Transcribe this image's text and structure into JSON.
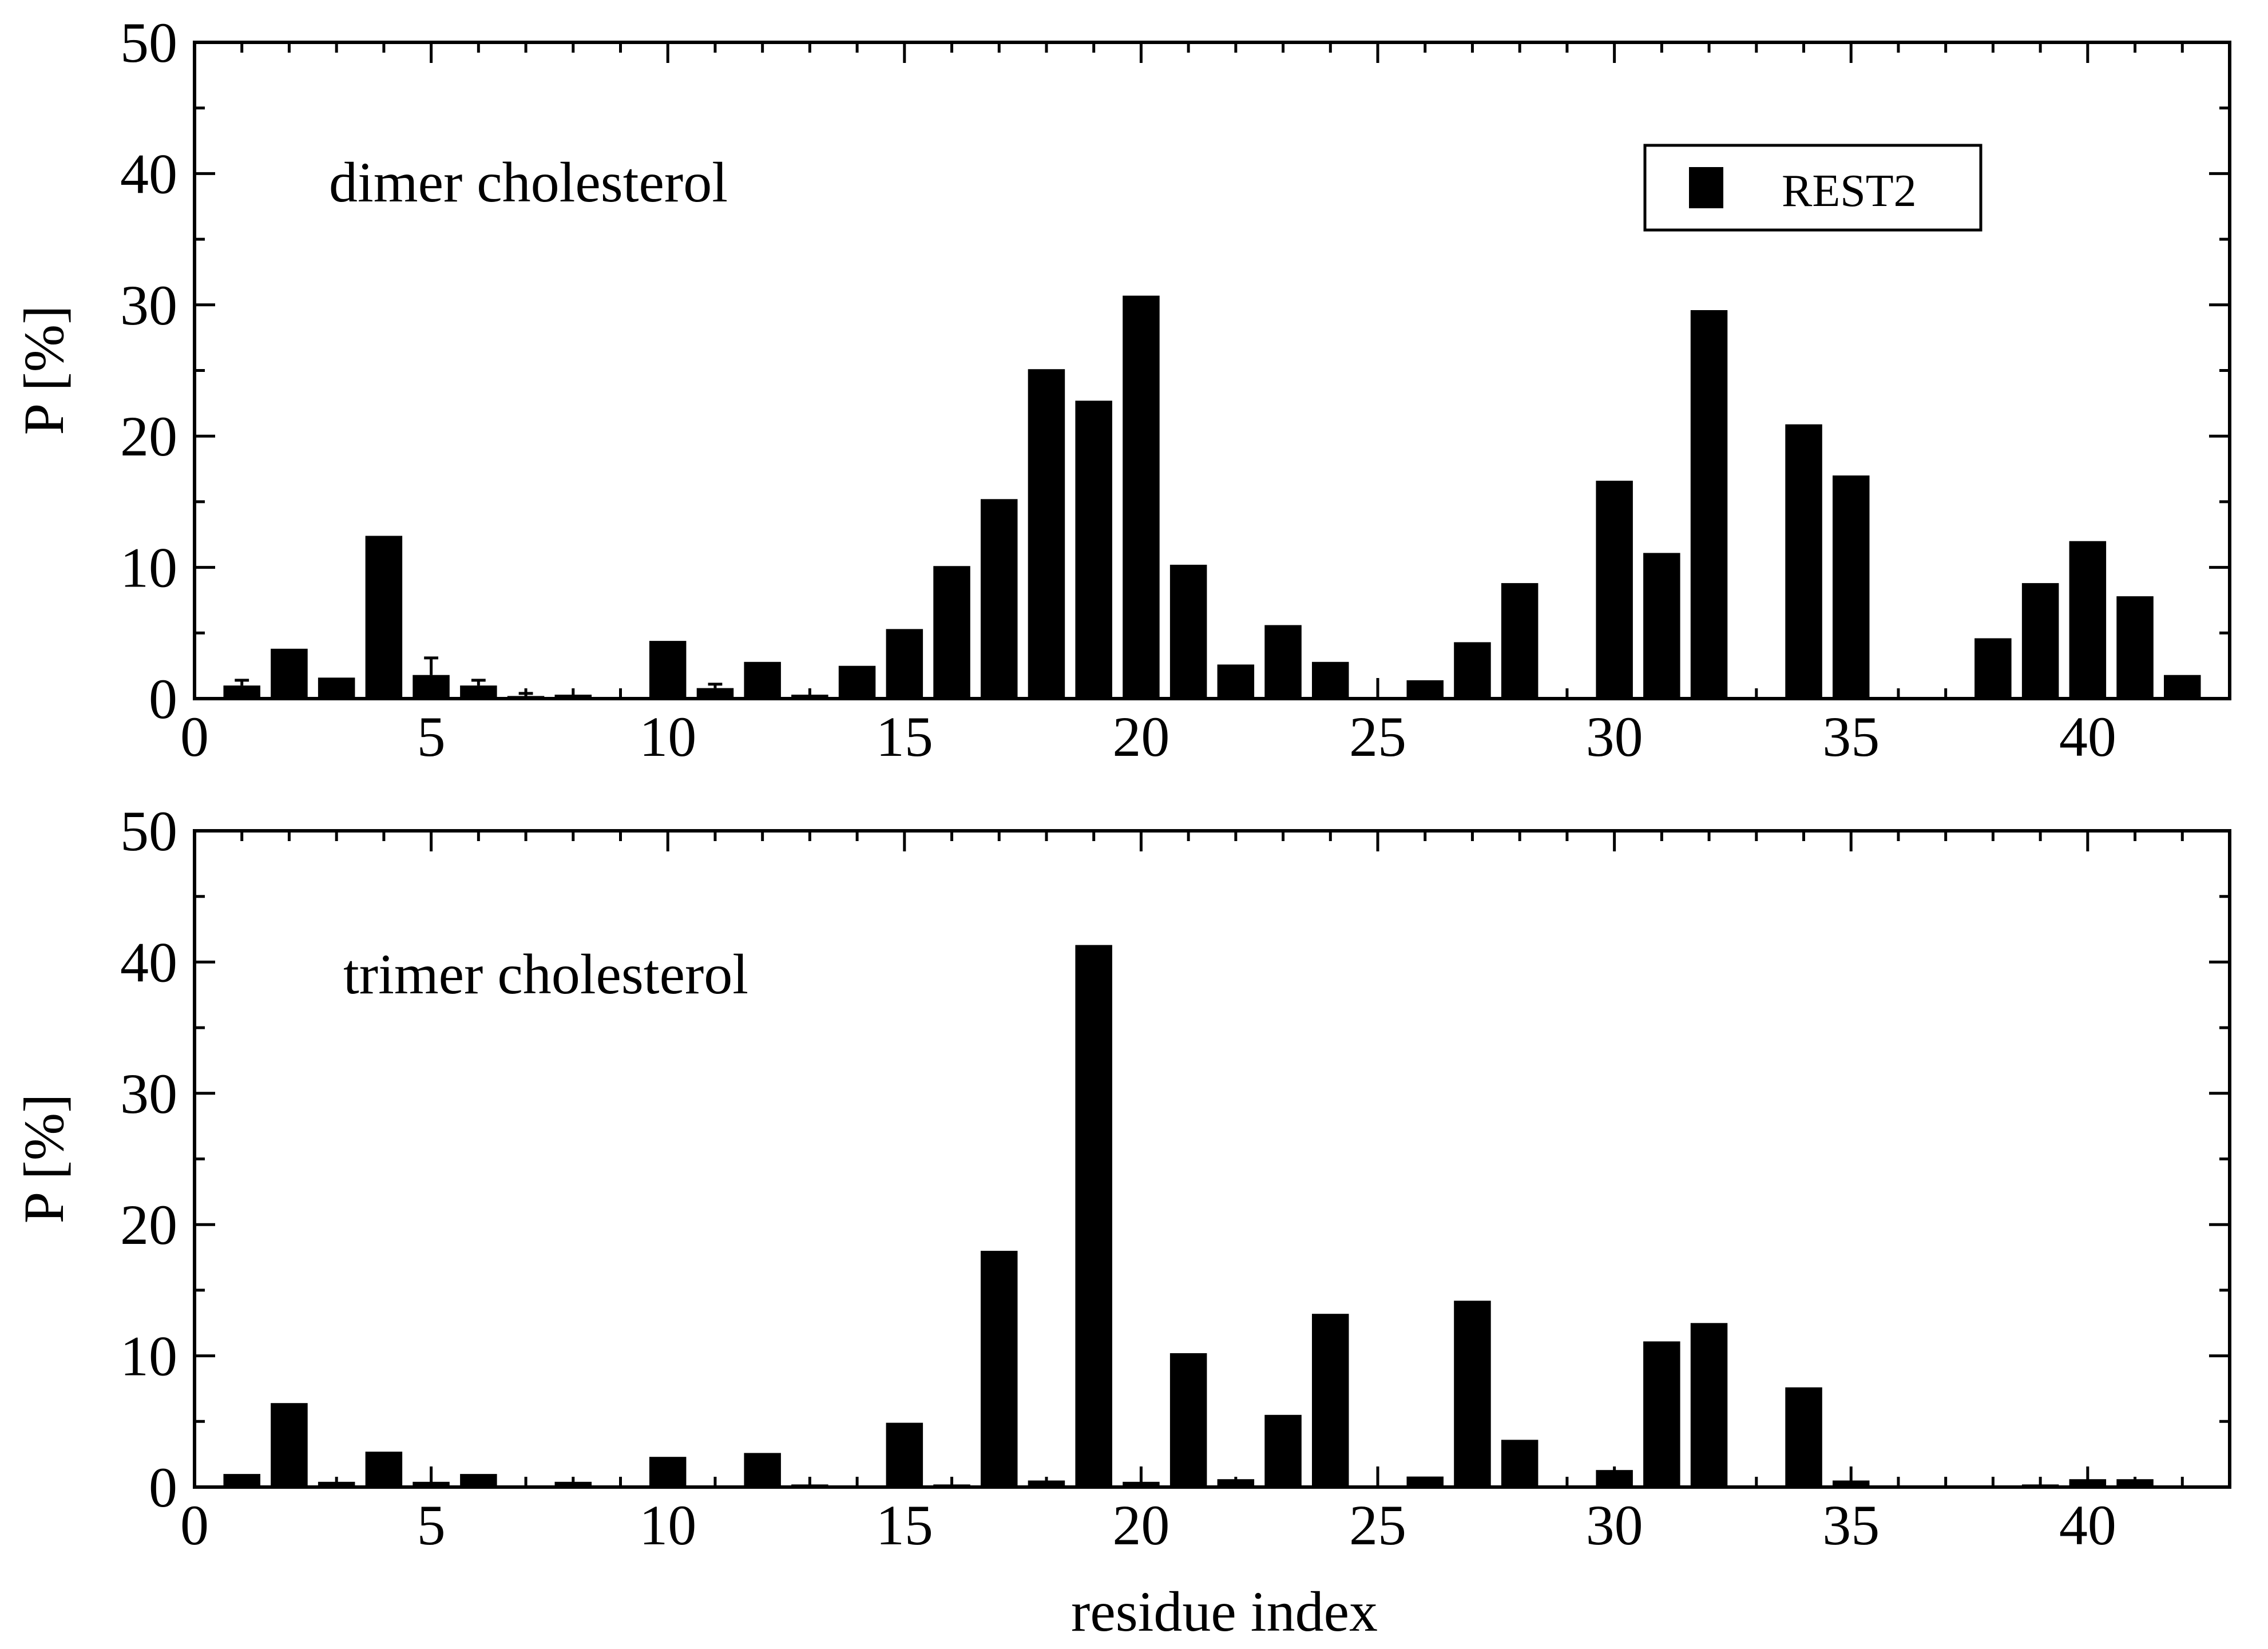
{
  "chart_data": [
    {
      "type": "bar",
      "annotation": "dimer cholesterol",
      "xlabel": "",
      "ylabel": "P [%]",
      "xlim": [
        0,
        43
      ],
      "ylim": [
        0,
        50
      ],
      "xticks": [
        0,
        5,
        10,
        15,
        20,
        25,
        30,
        35,
        40
      ],
      "yticks": [
        0,
        10,
        20,
        30,
        40,
        50
      ],
      "legend": {
        "position": "top-right",
        "entries": [
          "REST2"
        ]
      },
      "series": [
        {
          "name": "REST2",
          "x": [
            1,
            2,
            3,
            4,
            5,
            6,
            7,
            8,
            9,
            10,
            11,
            12,
            13,
            14,
            15,
            16,
            17,
            18,
            19,
            20,
            21,
            22,
            23,
            24,
            25,
            26,
            27,
            28,
            29,
            30,
            31,
            32,
            33,
            34,
            35,
            36,
            37,
            38,
            39,
            40,
            41,
            42
          ],
          "values": [
            1.0,
            3.8,
            1.6,
            12.4,
            1.8,
            1.0,
            0.2,
            0.3,
            0,
            4.4,
            0.8,
            2.8,
            0.3,
            2.5,
            5.3,
            10.1,
            15.2,
            25.1,
            22.7,
            30.7,
            10.2,
            2.6,
            5.6,
            2.8,
            0,
            1.4,
            4.3,
            8.8,
            0,
            16.6,
            11.1,
            29.6,
            0,
            20.9,
            17.0,
            0,
            0,
            4.6,
            8.8,
            12.0,
            7.8,
            1.8
          ],
          "errors": [
            0.4,
            0,
            0,
            0,
            1.3,
            0.4,
            0.2,
            0,
            0,
            0,
            0.3,
            0,
            0,
            0,
            0,
            0,
            0,
            0,
            0,
            0,
            0,
            0,
            0,
            0,
            0,
            0,
            0,
            0,
            0,
            0,
            0,
            0,
            0,
            0,
            0,
            0,
            0,
            0,
            0,
            0,
            0,
            0
          ]
        }
      ]
    },
    {
      "type": "bar",
      "annotation": "trimer cholesterol",
      "xlabel": "residue index",
      "ylabel": "P [%]",
      "xlim": [
        0,
        43
      ],
      "ylim": [
        0,
        50
      ],
      "xticks": [
        0,
        5,
        10,
        15,
        20,
        25,
        30,
        35,
        40
      ],
      "yticks": [
        0,
        10,
        20,
        30,
        40,
        50
      ],
      "series": [
        {
          "name": "REST2",
          "x": [
            1,
            2,
            3,
            4,
            5,
            6,
            7,
            8,
            9,
            10,
            11,
            12,
            13,
            14,
            15,
            16,
            17,
            18,
            19,
            20,
            21,
            22,
            23,
            24,
            25,
            26,
            27,
            28,
            29,
            30,
            31,
            32,
            33,
            34,
            35,
            36,
            37,
            38,
            39,
            40,
            41,
            42
          ],
          "values": [
            1.0,
            6.4,
            0.4,
            2.7,
            0.4,
            1.0,
            0,
            0.4,
            0,
            2.3,
            0,
            2.6,
            0.2,
            0.1,
            4.9,
            0.2,
            18.0,
            0.5,
            41.3,
            0.4,
            10.2,
            0.6,
            5.5,
            13.2,
            0,
            0.8,
            14.2,
            3.6,
            0,
            1.3,
            11.1,
            12.5,
            0,
            7.6,
            0.5,
            0,
            0,
            0,
            0.2,
            0.6,
            0.6,
            0.1
          ]
        }
      ]
    }
  ]
}
